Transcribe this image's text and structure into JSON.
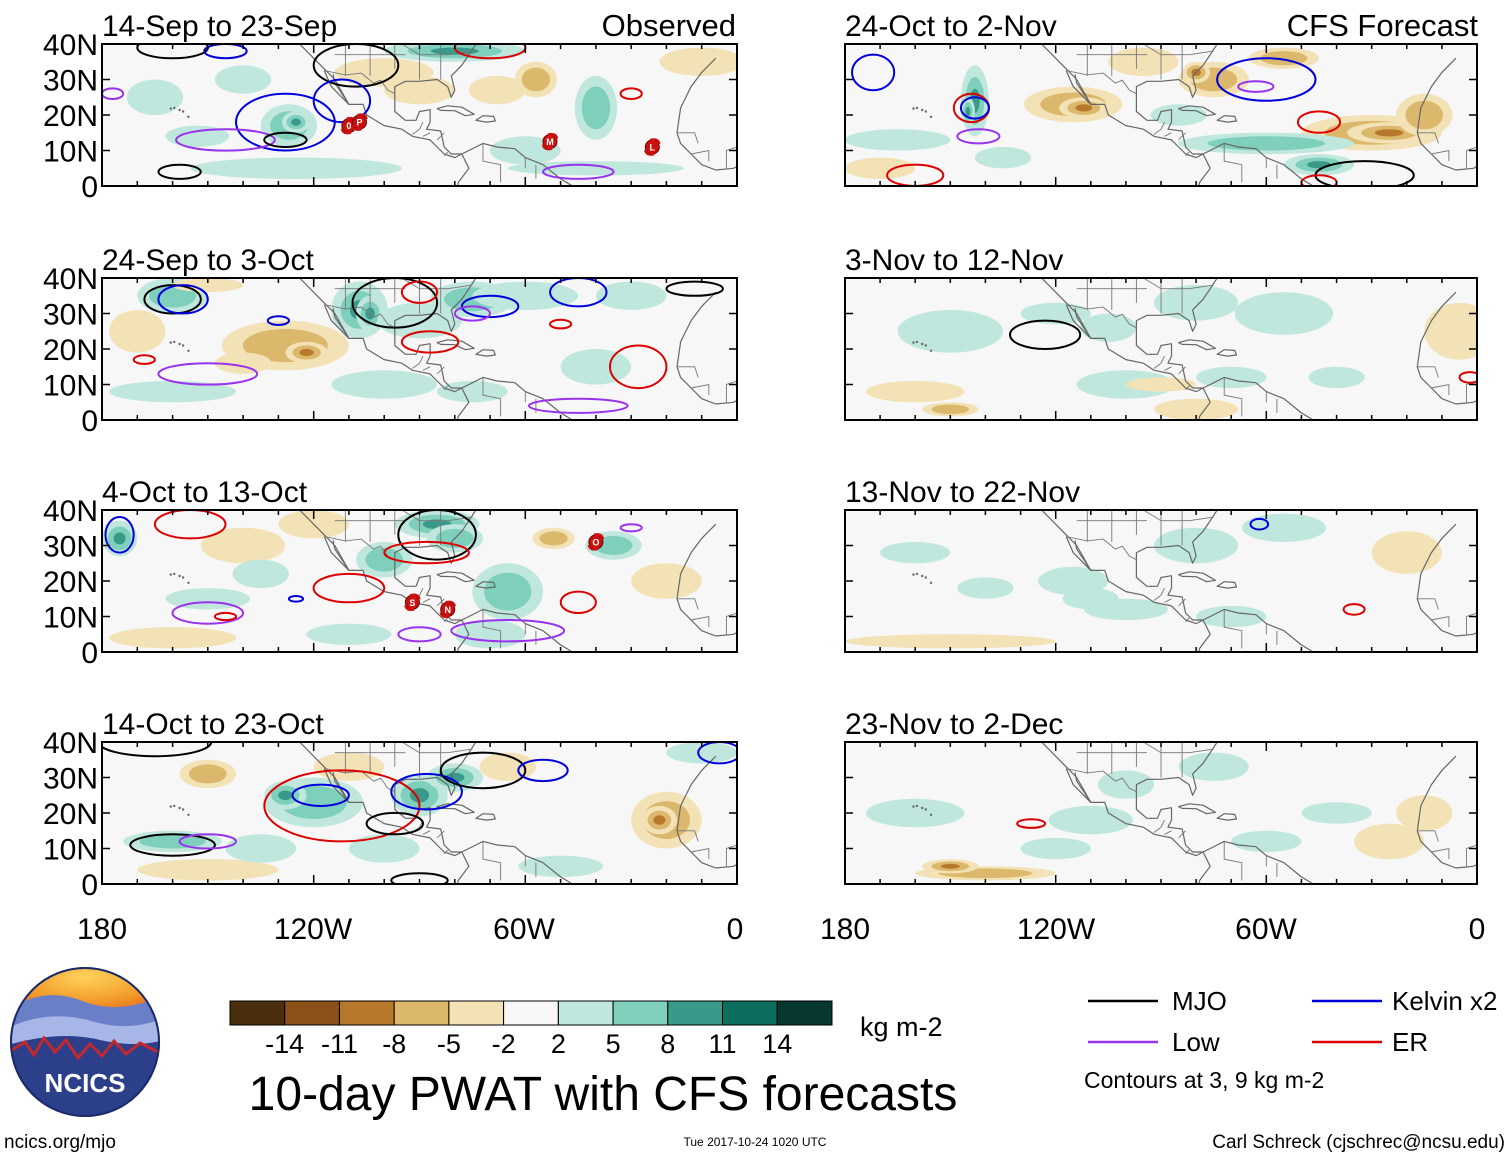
{
  "column_headers": {
    "left": "Observed",
    "right": "CFS Forecast"
  },
  "observed_panels": [
    {
      "period": "14-Sep to 23-Sep"
    },
    {
      "period": "24-Sep to 3-Oct"
    },
    {
      "period": "4-Oct to 13-Oct"
    },
    {
      "period": "14-Oct to 23-Oct"
    }
  ],
  "forecast_panels": [
    {
      "period": "24-Oct to 2-Nov"
    },
    {
      "period": "3-Nov to 12-Nov"
    },
    {
      "period": "13-Nov to 22-Nov"
    },
    {
      "period": "23-Nov to 2-Dec"
    }
  ],
  "lat_labels": [
    "40N",
    "30N",
    "20N",
    "10N",
    "0"
  ],
  "lon_labels": [
    "180",
    "120W",
    "60W",
    "0"
  ],
  "colorbar": {
    "tick_labels": [
      "-14",
      "-11",
      "-8",
      "-5",
      "-2",
      "2",
      "5",
      "8",
      "11",
      "14"
    ],
    "units": "kg m-2",
    "colors": [
      "#4b2e0c",
      "#8b5118",
      "#b8782c",
      "#dcb86c",
      "#f2e2b6",
      "#f7f7f7",
      "#bfe7dd",
      "#7fcfbd",
      "#3a9a8a",
      "#0d6e5e",
      "#06382f"
    ]
  },
  "legend": {
    "items": [
      {
        "label": "MJO",
        "color": "#000000"
      },
      {
        "label": "Kelvin x2",
        "color": "#0000dd"
      },
      {
        "label": "Low",
        "color": "#9933ee"
      },
      {
        "label": "ER",
        "color": "#dd0000"
      }
    ],
    "note": "Contours at 3, 9 kg m-2"
  },
  "title": "10-day PWAT with CFS forecasts",
  "logo_text": "NCICS",
  "footer": {
    "url": "ncics.org/mjo",
    "timestamp": "Tue 2017-10-24 1020 UTC",
    "credit": "Carl Schreck (cjschrec@ncsu.edu)"
  },
  "storm_markers": [
    {
      "panel": 0,
      "lon": -110,
      "lat": 17,
      "label": "0"
    },
    {
      "panel": 0,
      "lon": -107,
      "lat": 18,
      "label": "P"
    },
    {
      "panel": 0,
      "lon": -53,
      "lat": 12.5,
      "label": "M"
    },
    {
      "panel": 0,
      "lon": -24,
      "lat": 11,
      "label": "L"
    },
    {
      "panel": 2,
      "lon": -40,
      "lat": 31,
      "label": "O"
    },
    {
      "panel": 2,
      "lon": -92,
      "lat": 14,
      "label": "S"
    },
    {
      "panel": 2,
      "lon": -82,
      "lat": 12,
      "label": "N"
    }
  ]
}
